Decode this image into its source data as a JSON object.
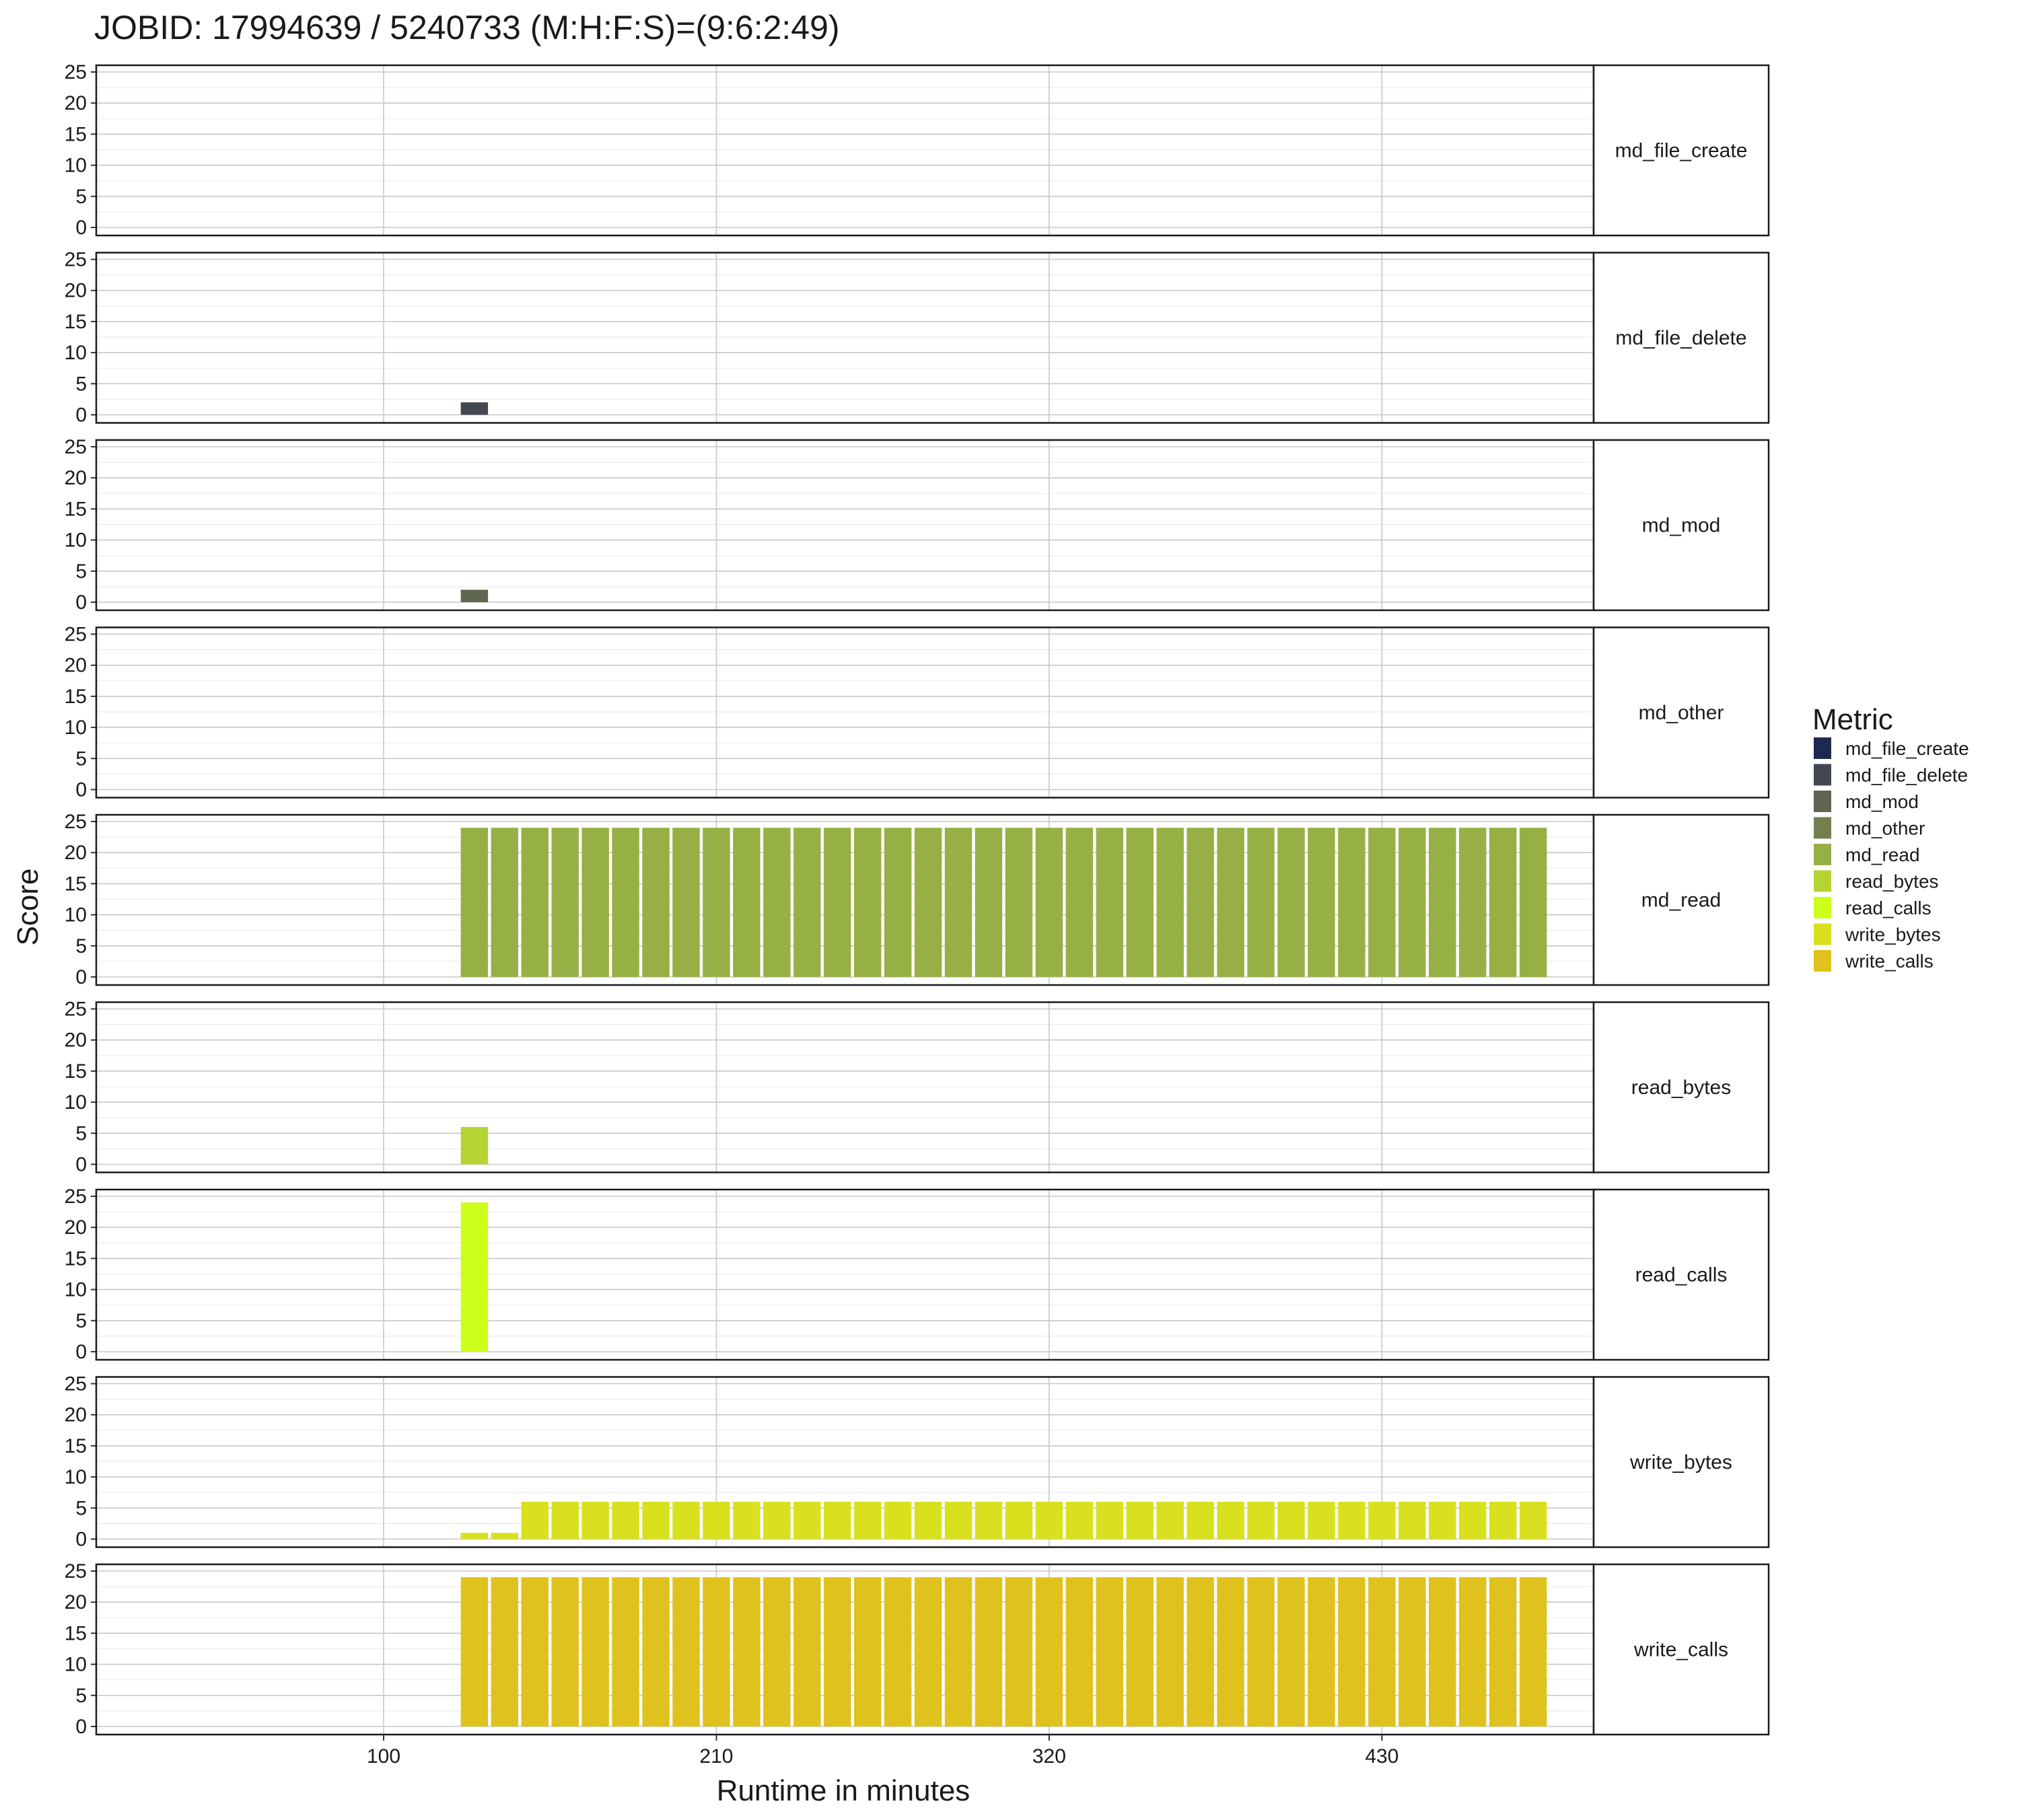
{
  "chart_data": {
    "type": "bar",
    "title": "JOBID: 17994639 / 5240733 (M:H:F:S)=(9:6:2:49)",
    "xlabel": "Runtime in minutes",
    "ylabel": "Score",
    "x_ticks": [
      100,
      210,
      320,
      430
    ],
    "xlim": [
      5,
      500
    ],
    "y_ticks": [
      0,
      5,
      10,
      15,
      20,
      25
    ],
    "ylim": [
      0,
      25
    ],
    "grid": true,
    "legend_title": "Metric",
    "legend_position": "right",
    "bar_width_minutes": 9,
    "x": [
      130,
      140,
      150,
      160,
      170,
      180,
      190,
      200,
      210,
      220,
      230,
      240,
      250,
      260,
      270,
      280,
      290,
      300,
      310,
      320,
      330,
      340,
      350,
      360,
      370,
      380,
      390,
      400,
      410,
      420,
      430,
      440,
      450,
      460,
      470,
      480
    ],
    "series": [
      {
        "name": "md_file_create",
        "color": "#1d2951",
        "values": [
          0,
          0,
          0,
          0,
          0,
          0,
          0,
          0,
          0,
          0,
          0,
          0,
          0,
          0,
          0,
          0,
          0,
          0,
          0,
          0,
          0,
          0,
          0,
          0,
          0,
          0,
          0,
          0,
          0,
          0,
          0,
          0,
          0,
          0,
          0,
          0
        ]
      },
      {
        "name": "md_file_delete",
        "color": "#43474f",
        "values": [
          2,
          0,
          0,
          0,
          0,
          0,
          0,
          0,
          0,
          0,
          0,
          0,
          0,
          0,
          0,
          0,
          0,
          0,
          0,
          0,
          0,
          0,
          0,
          0,
          0,
          0,
          0,
          0,
          0,
          0,
          0,
          0,
          0,
          0,
          0,
          0
        ]
      },
      {
        "name": "md_mod",
        "color": "#5f6651",
        "values": [
          2,
          0,
          0,
          0,
          0,
          0,
          0,
          0,
          0,
          0,
          0,
          0,
          0,
          0,
          0,
          0,
          0,
          0,
          0,
          0,
          0,
          0,
          0,
          0,
          0,
          0,
          0,
          0,
          0,
          0,
          0,
          0,
          0,
          0,
          0,
          0
        ]
      },
      {
        "name": "md_other",
        "color": "#727f4f",
        "values": [
          0,
          0,
          0,
          0,
          0,
          0,
          0,
          0,
          0,
          0,
          0,
          0,
          0,
          0,
          0,
          0,
          0,
          0,
          0,
          0,
          0,
          0,
          0,
          0,
          0,
          0,
          0,
          0,
          0,
          0,
          0,
          0,
          0,
          0,
          0,
          0
        ]
      },
      {
        "name": "md_read",
        "color": "#97b045",
        "values": [
          24,
          24,
          24,
          24,
          24,
          24,
          24,
          24,
          24,
          24,
          24,
          24,
          24,
          24,
          24,
          24,
          24,
          24,
          24,
          24,
          24,
          24,
          24,
          24,
          24,
          24,
          24,
          24,
          24,
          24,
          24,
          24,
          24,
          24,
          24,
          24
        ]
      },
      {
        "name": "read_bytes",
        "color": "#b4d433",
        "values": [
          6,
          0,
          0,
          0,
          0,
          0,
          0,
          0,
          0,
          0,
          0,
          0,
          0,
          0,
          0,
          0,
          0,
          0,
          0,
          0,
          0,
          0,
          0,
          0,
          0,
          0,
          0,
          0,
          0,
          0,
          0,
          0,
          0,
          0,
          0,
          0
        ]
      },
      {
        "name": "read_calls",
        "color": "#ccff1a",
        "values": [
          24,
          0,
          0,
          0,
          0,
          0,
          0,
          0,
          0,
          0,
          0,
          0,
          0,
          0,
          0,
          0,
          0,
          0,
          0,
          0,
          0,
          0,
          0,
          0,
          0,
          0,
          0,
          0,
          0,
          0,
          0,
          0,
          0,
          0,
          0,
          0
        ]
      },
      {
        "name": "write_bytes",
        "color": "#d9e11e",
        "values": [
          1,
          1,
          6,
          6,
          6,
          6,
          6,
          6,
          6,
          6,
          6,
          6,
          6,
          6,
          6,
          6,
          6,
          6,
          6,
          6,
          6,
          6,
          6,
          6,
          6,
          6,
          6,
          6,
          6,
          6,
          6,
          6,
          6,
          6,
          6,
          6
        ]
      },
      {
        "name": "write_calls",
        "color": "#e0c21e",
        "values": [
          24,
          24,
          24,
          24,
          24,
          24,
          24,
          24,
          24,
          24,
          24,
          24,
          24,
          24,
          24,
          24,
          24,
          24,
          24,
          24,
          24,
          24,
          24,
          24,
          24,
          24,
          24,
          24,
          24,
          24,
          24,
          24,
          24,
          24,
          24,
          24
        ]
      }
    ]
  }
}
